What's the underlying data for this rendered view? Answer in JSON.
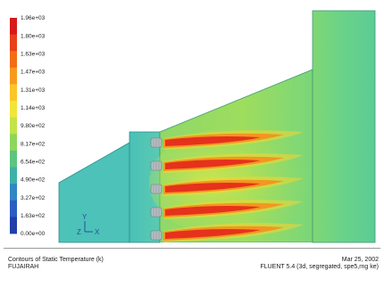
{
  "legend": {
    "colors": [
      "#d7191c",
      "#e8401a",
      "#f26d16",
      "#f79a1e",
      "#fbc528",
      "#f2e53a",
      "#c4e24a",
      "#8fd65c",
      "#5cc581",
      "#3fb1a8",
      "#3187c4",
      "#2a5ec2",
      "#213fa8"
    ],
    "labels": [
      "1.96e+03",
      "1.80e+03",
      "1.63e+03",
      "1.47e+03",
      "1.31e+03",
      "1.14e+03",
      "9.80e+02",
      "8.17e+02",
      "6.54e+02",
      "4.90e+02",
      "3.27e+02",
      "1.63e+02",
      "0.00e+00"
    ]
  },
  "domain_colors": {
    "duct": "#4cc2b8",
    "plenum": "#59cbb5",
    "diffuser": "#74d87e",
    "outlet": "#6ad88a",
    "flame_core": "#e5321c",
    "flame_mid": "#f68f1c",
    "flame_outer": "#f6d532",
    "burner": "#b7bec4"
  },
  "burner_count": 5,
  "axes": {
    "y": "Y",
    "z": "Z",
    "x": "X"
  },
  "caption": {
    "title": "Contours of Static Temperature (k)",
    "subtitle": "FUJAIRAH",
    "date": "Mar 25, 2002",
    "version": "FLUENT 5.4 (3d, segregated, spe5,rng ke)"
  }
}
